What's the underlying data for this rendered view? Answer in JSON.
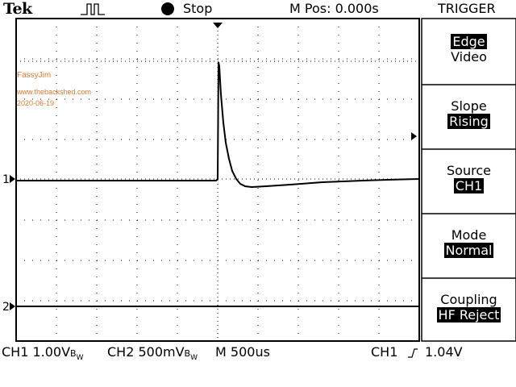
{
  "header": {
    "brand": "Tek",
    "acquisition_state": "Stop",
    "horizontal_position": "M Pos: 0.000s",
    "menu_title": "TRIGGER"
  },
  "annotations": {
    "author": "FassyJim",
    "website": "www.thebackshed.com",
    "date": "2020-06-19"
  },
  "channel_markers": {
    "ch1": "1",
    "ch2": "2"
  },
  "trigger_menu": [
    {
      "label": "Edge",
      "value": "Video",
      "label_highlighted": true
    },
    {
      "label": "Slope",
      "value": "Rising"
    },
    {
      "label": "Source",
      "value": "CH1"
    },
    {
      "label": "Mode",
      "value": "Normal"
    },
    {
      "label": "Coupling",
      "value": "HF Reject"
    }
  ],
  "status_bar": {
    "ch1_scale": "CH1  1.00V",
    "ch2_scale": "CH2  500mV",
    "bw_suffix": "B",
    "bw_sub": "W",
    "time_base": "M  500",
    "time_base_unit": "us",
    "trigger_source": "CH1",
    "trigger_level": "1.04V"
  },
  "colors": {
    "trace": "#000000",
    "annotation": "#e07a2e",
    "background": "#ffffff"
  }
}
